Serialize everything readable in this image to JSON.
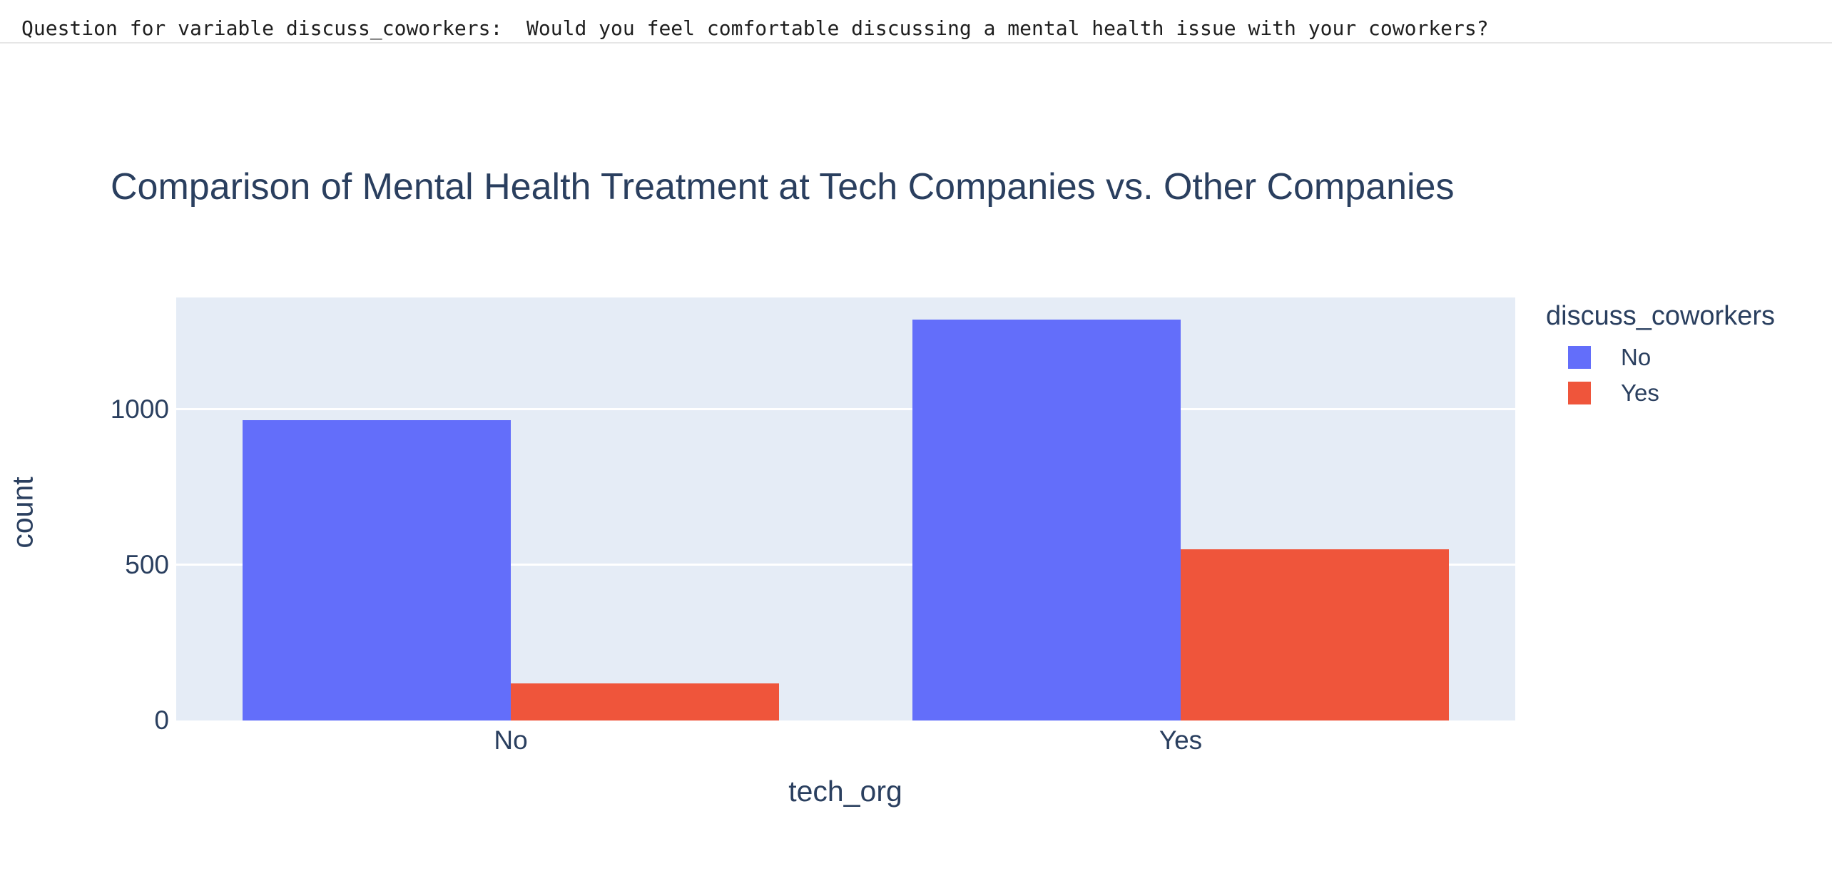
{
  "header": {
    "question": "Question for variable discuss_coworkers:  Would you feel comfortable discussing a mental health issue with your coworkers?"
  },
  "chart_data": {
    "type": "bar",
    "title": "Comparison of Mental Health Treatment at Tech Companies vs. Other Companies",
    "categories": [
      "No",
      "Yes"
    ],
    "series": [
      {
        "name": "No",
        "color": "#636EFA",
        "values": [
          965,
          1290
        ]
      },
      {
        "name": "Yes",
        "color": "#EF553B",
        "values": [
          120,
          550
        ]
      }
    ],
    "xlabel": "tech_org",
    "ylabel": "count",
    "ylim": [
      0,
      1360
    ],
    "y_ticks": [
      0,
      500,
      1000
    ],
    "legend_title": "discuss_coworkers",
    "legend_position": "right",
    "grid": true,
    "plot_bgcolor": "#E5ECF6",
    "text_color": "#2A3F5F"
  }
}
